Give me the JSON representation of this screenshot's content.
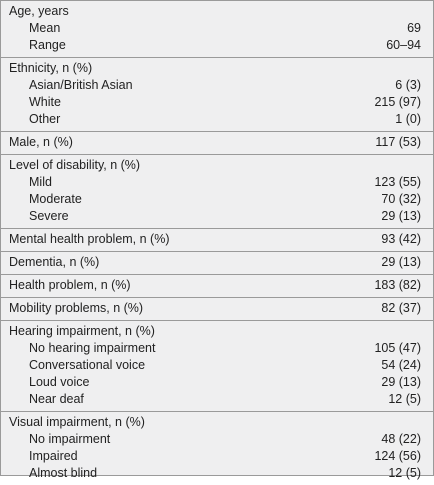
{
  "sections": [
    {
      "label": "Age, years",
      "rows": [
        [
          "Mean",
          "69"
        ],
        [
          "Range",
          "60–94"
        ]
      ]
    },
    {
      "label": "Ethnicity, n (%)",
      "rows": [
        [
          "Asian/British Asian",
          "6 (3)"
        ],
        [
          "White",
          "215 (97)"
        ],
        [
          "Other",
          "1 (0)"
        ]
      ]
    },
    {
      "label": "Male, n (%)",
      "value": "117 (53)"
    },
    {
      "label": "Level of disability, n (%)",
      "rows": [
        [
          "Mild",
          "123 (55)"
        ],
        [
          "Moderate",
          "70 (32)"
        ],
        [
          "Severe",
          "29 (13)"
        ]
      ]
    },
    {
      "label": "Mental health problem, n (%)",
      "value": "93 (42)"
    },
    {
      "label": "Dementia, n (%)",
      "value": "29 (13)"
    },
    {
      "label": "Health problem, n (%)",
      "value": "183 (82)"
    },
    {
      "label": "Mobility problems, n (%)",
      "value": "82 (37)"
    },
    {
      "label": "Hearing impairment, n (%)",
      "rows": [
        [
          "No hearing impairment",
          "105 (47)"
        ],
        [
          "Conversational voice",
          "54 (24)"
        ],
        [
          "Loud voice",
          "29 (13)"
        ],
        [
          "Near deaf",
          "12 (5)"
        ]
      ]
    },
    {
      "label": "Visual impairment, n (%)",
      "rows": [
        [
          "No impairment",
          "48 (22)"
        ],
        [
          "Impaired",
          "124 (56)"
        ],
        [
          "Almost blind",
          "12 (5)"
        ]
      ]
    }
  ]
}
